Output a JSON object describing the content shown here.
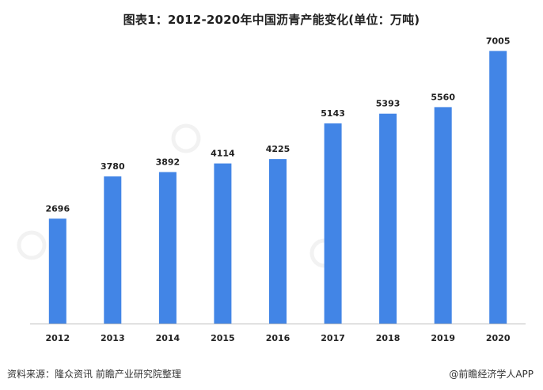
{
  "title": "图表1：2012-2020年中国沥青产能变化(单位：万吨)",
  "source": "资料来源：隆众资讯 前瞻产业研究院整理",
  "brand": "@前瞻经济学人APP",
  "colors": {
    "bar": "#4285e6",
    "axis": "#bdbdbd",
    "label": "#222222"
  },
  "chart_data": {
    "type": "bar",
    "title": "图表1：2012-2020年中国沥青产能变化(单位：万吨)",
    "categories": [
      "2012",
      "2013",
      "2014",
      "2015",
      "2016",
      "2017",
      "2018",
      "2019",
      "2020"
    ],
    "values": [
      2696,
      3780,
      3892,
      4114,
      4225,
      5143,
      5393,
      5560,
      7005
    ],
    "ylim": [
      0,
      7500
    ],
    "grid": false,
    "legend": "none",
    "data_labels": true
  }
}
